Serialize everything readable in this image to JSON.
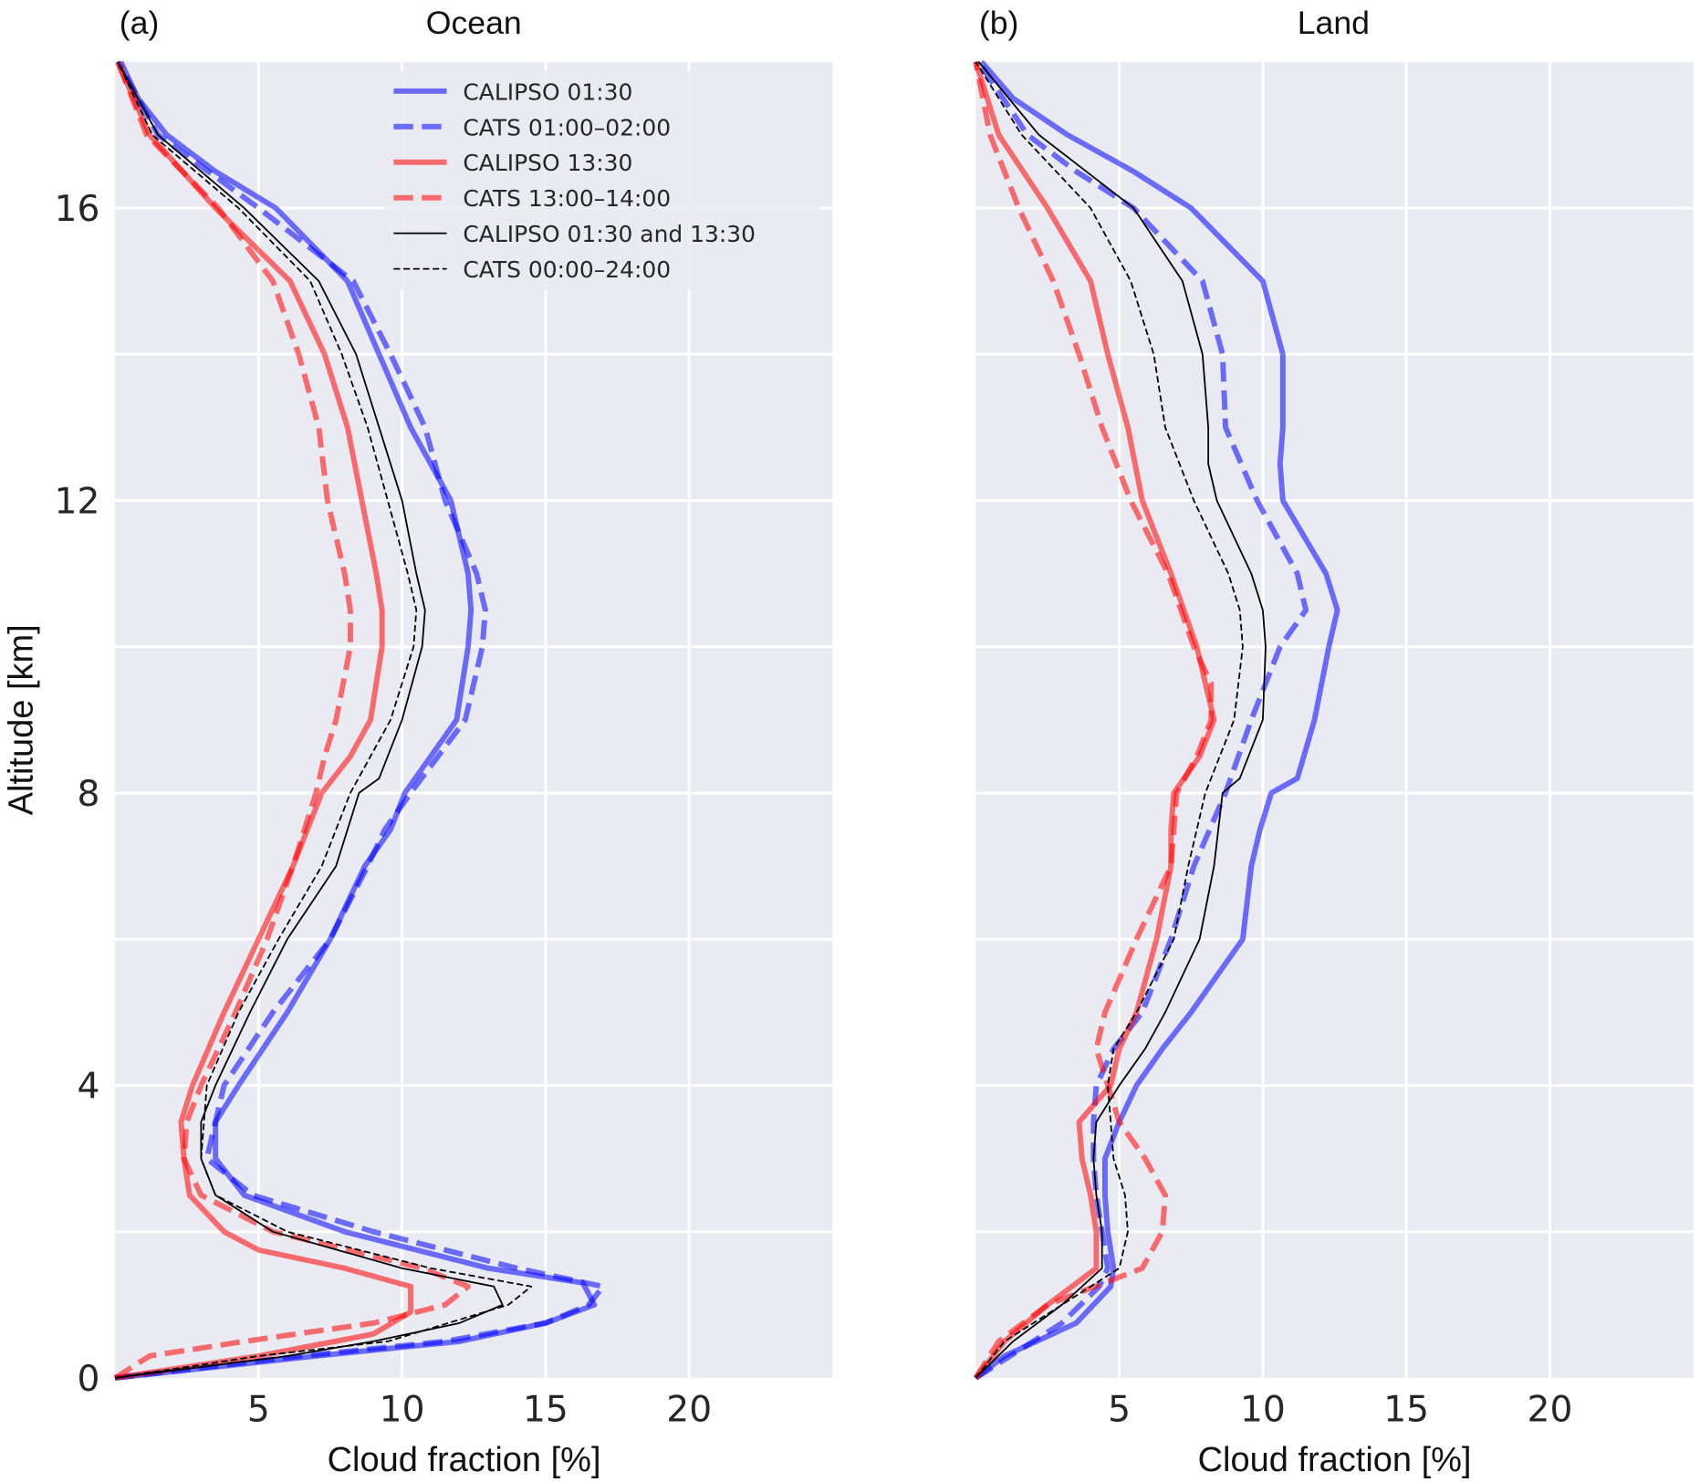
{
  "chart_data": [
    {
      "type": "line",
      "panel_label": "(a)",
      "title": "Ocean",
      "xlabel": "Cloud fraction [%]",
      "ylabel": "Altitude [km]",
      "xlim": [
        0,
        25
      ],
      "ylim": [
        0,
        18
      ],
      "xticks": [
        5,
        10,
        15,
        20
      ],
      "yticks": [
        0,
        4,
        8,
        12,
        16
      ],
      "grid": true,
      "legend_placement": "top-right",
      "series": [
        {
          "name": "CALIPSO 01:30",
          "color": "#0000ff",
          "dash": "solid",
          "weight": "thick",
          "y": [
            0,
            0.3,
            0.5,
            0.75,
            1.0,
            1.3,
            1.5,
            2,
            2.5,
            3,
            3.5,
            4,
            5,
            6,
            7,
            7.5,
            8,
            9,
            10,
            10.5,
            11,
            12,
            13,
            14,
            15,
            16,
            16.5,
            17,
            17.5,
            18
          ],
          "x": [
            0,
            7,
            12,
            15,
            16.7,
            16.3,
            13,
            8,
            4.5,
            3.5,
            3.5,
            4.3,
            6,
            7.5,
            8.7,
            9.6,
            10.1,
            11.9,
            12.3,
            12.4,
            12.3,
            11.7,
            10.3,
            9.2,
            8.1,
            5.6,
            3.5,
            1.8,
            0.8,
            0.2
          ]
        },
        {
          "name": "CATS 01:00–02:00",
          "color": "#0000ff",
          "dash": "dashed",
          "weight": "thick",
          "y": [
            0,
            0.3,
            0.5,
            0.75,
            1.0,
            1.25,
            1.5,
            2,
            2.5,
            3,
            4,
            5,
            6,
            7,
            7.5,
            8,
            9,
            10,
            10.5,
            11,
            12,
            13,
            14,
            15,
            16,
            17,
            18
          ],
          "x": [
            0,
            6.5,
            11.5,
            15,
            16.5,
            17,
            14,
            9,
            4.8,
            3.2,
            3.8,
            5.5,
            7.5,
            8.8,
            9.4,
            10.3,
            12.2,
            12.8,
            12.9,
            12.6,
            11.5,
            10.8,
            9.6,
            8.3,
            5,
            1.5,
            0.1
          ]
        },
        {
          "name": "CALIPSO 13:30",
          "color": "#ff0000",
          "dash": "solid",
          "weight": "thick",
          "y": [
            0,
            0.3,
            0.6,
            0.9,
            1.25,
            1.5,
            1.75,
            2,
            2.5,
            3,
            3.5,
            4,
            5,
            6,
            7,
            8,
            8.5,
            9,
            10,
            10.5,
            11,
            12,
            13,
            14,
            15,
            16,
            17,
            18
          ],
          "x": [
            0,
            5,
            9,
            10.3,
            10.3,
            8,
            5,
            3.8,
            2.6,
            2.4,
            2.3,
            2.7,
            3.8,
            5,
            6.2,
            7.2,
            8.2,
            8.9,
            9.3,
            9.3,
            9.1,
            8.6,
            8.1,
            7.3,
            6.1,
            3.5,
            1.2,
            0.1
          ]
        },
        {
          "name": "CATS 13:00–14:00",
          "color": "#ff0000",
          "dash": "dashed",
          "weight": "thick",
          "y": [
            0,
            0.3,
            0.5,
            0.75,
            1.0,
            1.25,
            1.5,
            2,
            2.5,
            3,
            3.5,
            4,
            5,
            6,
            7,
            8,
            8.5,
            9,
            10,
            10.5,
            11,
            12,
            13,
            14,
            15,
            16,
            17,
            18
          ],
          "x": [
            0,
            1.2,
            4.5,
            9,
            11.5,
            12.3,
            10.7,
            5.5,
            3,
            2.4,
            2.5,
            3,
            4.2,
            5.3,
            6.2,
            7,
            7.3,
            7.7,
            8.2,
            8.2,
            8,
            7.4,
            7.1,
            6.4,
            5.5,
            3.6,
            1.1,
            0.1
          ]
        },
        {
          "name": "CALIPSO 01:30 and 13:30",
          "color": "#000000",
          "dash": "solid",
          "weight": "thin",
          "y": [
            0,
            0.3,
            0.5,
            0.75,
            1.0,
            1.25,
            1.5,
            2,
            2.5,
            3,
            3.5,
            4,
            5,
            6,
            7,
            8,
            8.2,
            9,
            10,
            10.5,
            11,
            12,
            13,
            14,
            15,
            16,
            17,
            18
          ],
          "x": [
            0,
            6,
            9,
            12,
            13.5,
            13.2,
            10,
            5.5,
            3.5,
            3,
            3,
            3.5,
            4.7,
            6,
            7.7,
            8.5,
            9.2,
            10,
            10.7,
            10.8,
            10.5,
            10,
            9.2,
            8.4,
            7.1,
            4.5,
            1.5,
            0.1
          ]
        },
        {
          "name": "CATS 00:00–24:00",
          "color": "#000000",
          "dash": "dashed",
          "weight": "thin",
          "y": [
            0,
            0.3,
            0.5,
            1.0,
            1.25,
            1.5,
            2,
            2.5,
            3,
            4,
            5,
            6,
            7,
            8,
            9,
            10,
            10.5,
            11,
            12,
            13,
            14,
            15,
            16,
            17,
            18
          ],
          "x": [
            0,
            5,
            9.5,
            13.7,
            14.5,
            11,
            6,
            3.5,
            3,
            3.2,
            4.3,
            5.7,
            7.2,
            8.2,
            9.6,
            10.4,
            10.5,
            10.2,
            9.5,
            8.8,
            7.9,
            6.8,
            4.3,
            1.3,
            0.1
          ]
        }
      ]
    },
    {
      "type": "line",
      "panel_label": "(b)",
      "title": "Land",
      "xlabel": "Cloud fraction [%]",
      "xlim": [
        0,
        25
      ],
      "ylim": [
        0,
        18
      ],
      "xticks": [
        5,
        10,
        15,
        20
      ],
      "grid": true,
      "series": [
        {
          "name": "CALIPSO 01:30",
          "color": "#0000ff",
          "dash": "solid",
          "weight": "thick",
          "y": [
            0,
            0.3,
            0.75,
            1.25,
            1.5,
            2,
            2.5,
            3,
            3.5,
            4,
            4.5,
            5,
            6,
            7,
            7.5,
            8,
            8.2,
            9,
            10,
            10.5,
            11,
            12,
            12.5,
            13,
            14,
            15,
            16,
            16.5,
            17,
            17.5,
            18
          ],
          "x": [
            0,
            1,
            3.5,
            4.7,
            4.8,
            4.6,
            4.5,
            4.5,
            5,
            5.6,
            6.5,
            7.5,
            9.3,
            9.6,
            9.9,
            10.3,
            11.2,
            11.8,
            12.3,
            12.6,
            12.2,
            10.7,
            10.6,
            10.7,
            10.7,
            10,
            7.5,
            5.5,
            3.2,
            1.3,
            0.2
          ]
        },
        {
          "name": "CATS 01:00–02:00",
          "color": "#0000ff",
          "dash": "dashed",
          "weight": "thick",
          "y": [
            0,
            0.75,
            1.25,
            1.5,
            2,
            2.5,
            3,
            3.5,
            4,
            4.5,
            5,
            6,
            7,
            8,
            9,
            10,
            10.5,
            11,
            11.5,
            12,
            13,
            14,
            15,
            16,
            16.5,
            17,
            18
          ],
          "x": [
            0,
            3,
            4.3,
            4.6,
            4.4,
            4.2,
            4.1,
            4.1,
            4.2,
            4.8,
            5.8,
            6.8,
            7.6,
            8.7,
            9.6,
            10.6,
            11.5,
            11.2,
            10.5,
            9.8,
            8.7,
            8.6,
            7.9,
            5.5,
            3.5,
            1.8,
            0.1
          ]
        },
        {
          "name": "CALIPSO 13:30",
          "color": "#ff0000",
          "dash": "solid",
          "weight": "thick",
          "y": [
            0,
            0.5,
            1,
            1.5,
            2,
            2.5,
            3,
            3.5,
            4,
            4.5,
            5,
            6,
            7,
            7.5,
            8,
            8.5,
            9,
            9.5,
            10,
            11,
            12,
            13,
            14,
            15,
            16,
            17,
            18
          ],
          "x": [
            0,
            1,
            2.5,
            4.2,
            4.2,
            4.0,
            3.7,
            3.6,
            4.7,
            5,
            5.6,
            6.3,
            6.8,
            6.8,
            6.9,
            7.8,
            8.3,
            8,
            7.7,
            6.8,
            5.8,
            5.3,
            4.6,
            4,
            2.5,
            0.8,
            0
          ]
        },
        {
          "name": "CATS 13:00–14:00",
          "color": "#ff0000",
          "dash": "dashed",
          "weight": "thick",
          "y": [
            0,
            0.5,
            1,
            1.5,
            2,
            2.5,
            3,
            3.5,
            4,
            4.5,
            5,
            6,
            7,
            8,
            8.5,
            9,
            9.5,
            10,
            11,
            12,
            13,
            14,
            15,
            16,
            17,
            18
          ],
          "x": [
            0,
            0.8,
            2.5,
            5.8,
            6.5,
            6.6,
            5.9,
            5,
            4.6,
            4.2,
            4.5,
            5.6,
            6.8,
            7,
            7.7,
            8.2,
            8.2,
            7.6,
            6.7,
            5.4,
            4.4,
            3.6,
            2.7,
            1.5,
            0.5,
            0
          ]
        },
        {
          "name": "CALIPSO 01:30 and 13:30",
          "color": "#000000",
          "dash": "solid",
          "weight": "thin",
          "y": [
            0,
            0.5,
            1,
            1.5,
            2,
            2.5,
            3,
            3.5,
            4,
            4.5,
            5,
            6,
            7,
            8,
            8.2,
            9,
            10,
            10.5,
            11,
            12,
            12.5,
            13,
            14,
            15,
            16,
            17,
            18
          ],
          "x": [
            0,
            1.3,
            3,
            4.4,
            4.4,
            4.2,
            4.1,
            4.2,
            5,
            5.9,
            6.6,
            7.8,
            8.3,
            8.6,
            9.2,
            10,
            10.1,
            10,
            9.6,
            8.4,
            8.1,
            8.1,
            7.9,
            7.2,
            5.5,
            2.2,
            0.1
          ]
        },
        {
          "name": "CATS 00:00–24:00",
          "color": "#000000",
          "dash": "dashed",
          "weight": "thin",
          "y": [
            0,
            0.5,
            1,
            1.5,
            2,
            2.5,
            3,
            3.5,
            4,
            4.5,
            5,
            6,
            7,
            8,
            9,
            10,
            10.5,
            11,
            12,
            13,
            14,
            15,
            16,
            17,
            18
          ],
          "x": [
            0,
            1,
            3,
            5,
            5.3,
            5.2,
            4.8,
            4.7,
            4.6,
            4.8,
            5.6,
            6.9,
            7.4,
            8,
            9,
            9.3,
            9.2,
            8.8,
            7.6,
            6.6,
            6.2,
            5.4,
            4,
            1.6,
            0
          ]
        }
      ]
    }
  ]
}
